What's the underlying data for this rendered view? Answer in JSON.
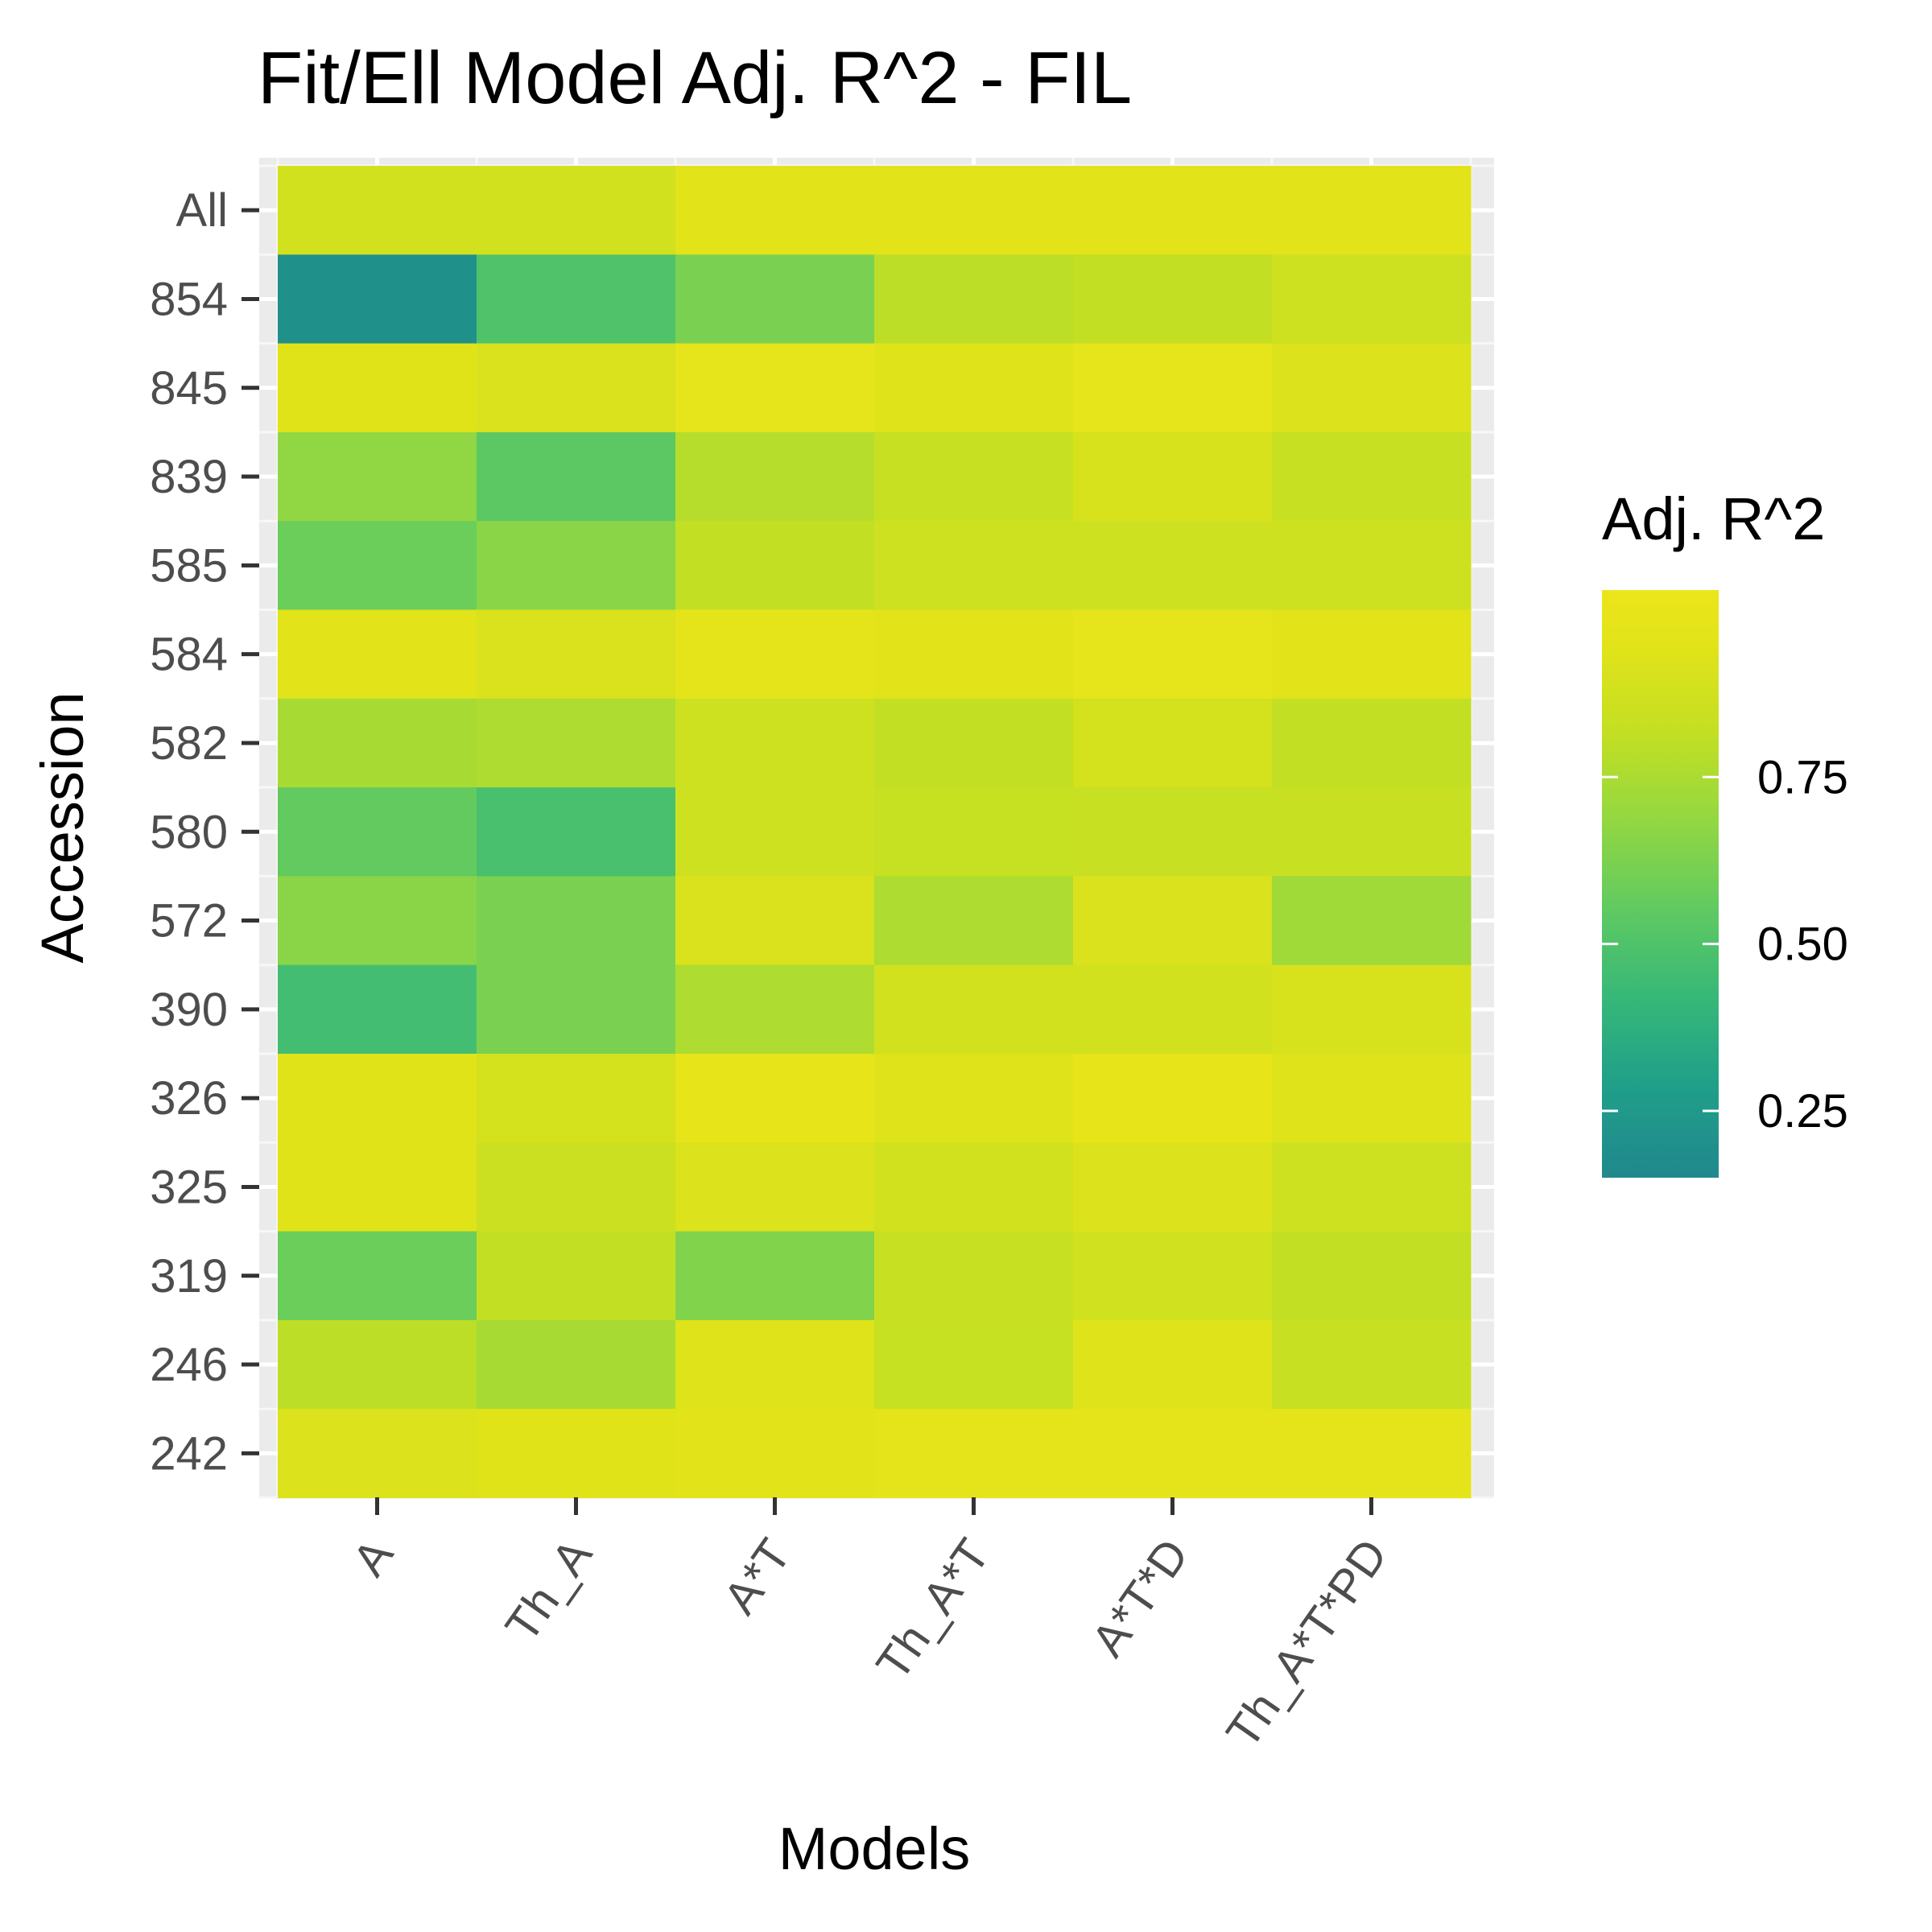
{
  "chart_data": {
    "type": "heatmap",
    "title": "Fit/Ell Model Adj. R^2 - FIL",
    "xlabel": "Models",
    "ylabel": "Accession",
    "x_categories": [
      "A",
      "Th_A",
      "A*T",
      "Th_A*T",
      "A*T*D",
      "Th_A*T*PD"
    ],
    "y_categories": [
      "All",
      "854",
      "845",
      "839",
      "585",
      "584",
      "582",
      "580",
      "572",
      "390",
      "326",
      "325",
      "319",
      "246",
      "242"
    ],
    "values": [
      [
        0.88,
        0.88,
        0.95,
        0.95,
        0.95,
        0.95
      ],
      [
        0.2,
        0.5,
        0.62,
        0.8,
        0.82,
        0.86
      ],
      [
        0.94,
        0.91,
        0.98,
        0.93,
        0.98,
        0.92
      ],
      [
        0.68,
        0.54,
        0.78,
        0.84,
        0.9,
        0.84
      ],
      [
        0.58,
        0.66,
        0.82,
        0.86,
        0.86,
        0.86
      ],
      [
        0.95,
        0.91,
        0.97,
        0.95,
        0.98,
        0.95
      ],
      [
        0.74,
        0.76,
        0.86,
        0.82,
        0.89,
        0.82
      ],
      [
        0.56,
        0.48,
        0.86,
        0.83,
        0.84,
        0.84
      ],
      [
        0.66,
        0.62,
        0.91,
        0.76,
        0.91,
        0.72
      ],
      [
        0.46,
        0.62,
        0.76,
        0.88,
        0.88,
        0.9
      ],
      [
        0.94,
        0.89,
        0.99,
        0.93,
        1.0,
        0.93
      ],
      [
        0.94,
        0.85,
        0.92,
        0.88,
        0.92,
        0.86
      ],
      [
        0.58,
        0.82,
        0.64,
        0.84,
        0.87,
        0.82
      ],
      [
        0.8,
        0.74,
        0.93,
        0.83,
        0.93,
        0.84
      ],
      [
        0.92,
        0.94,
        0.96,
        0.97,
        0.97,
        0.97
      ]
    ],
    "legend": {
      "title": "Adj. R^2",
      "position": "right",
      "ticks": [
        0.25,
        0.5,
        0.75
      ],
      "tick_labels": [
        "0.25",
        "0.50",
        "0.75"
      ],
      "range": [
        0.15,
        1.03
      ]
    },
    "colormap": "viridis (upper part)",
    "grid": true,
    "panel_background": "#ebebeb"
  }
}
